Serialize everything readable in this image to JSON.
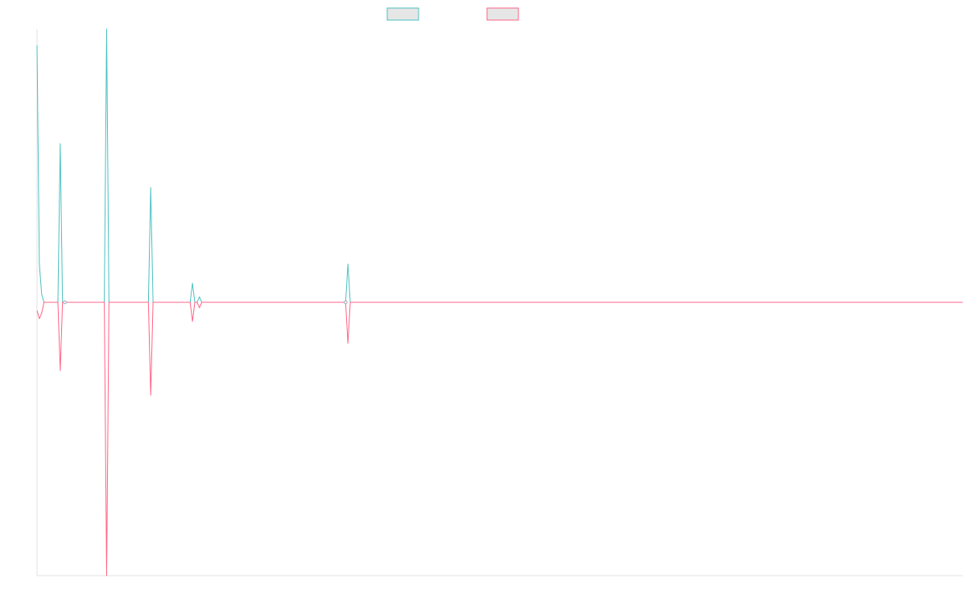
{
  "chart_data": {
    "type": "line",
    "title": "",
    "xlabel": "",
    "ylabel": "",
    "grid": false,
    "legend": "top-center",
    "x_count": 400,
    "ylim": [
      -1.0,
      1.0
    ],
    "series": [
      {
        "name": "",
        "color": "#4bc0c0",
        "fill": "#e6e6e6",
        "points": [
          [
            0,
            0.94
          ],
          [
            1,
            0.14
          ],
          [
            2,
            0.03
          ],
          [
            3,
            0.0
          ],
          [
            9,
            0.0
          ],
          [
            10,
            0.58
          ],
          [
            11,
            0.0
          ],
          [
            12,
            0.0
          ],
          [
            29,
            0.0
          ],
          [
            30,
            1.0
          ],
          [
            31,
            0.0
          ],
          [
            48,
            0.0
          ],
          [
            49,
            0.42
          ],
          [
            50,
            0.0
          ],
          [
            66,
            0.0
          ],
          [
            67,
            0.07
          ],
          [
            68,
            0.0
          ],
          [
            69,
            0.0
          ],
          [
            70,
            0.02
          ],
          [
            71,
            0.0
          ],
          [
            133,
            0.0
          ],
          [
            134,
            0.14
          ],
          [
            135,
            0.0
          ],
          [
            399,
            0.0
          ]
        ]
      },
      {
        "name": "",
        "color": "#ff6384",
        "fill": "#e6e6e6",
        "points": [
          [
            0,
            -0.03
          ],
          [
            1,
            -0.06
          ],
          [
            2,
            -0.04
          ],
          [
            3,
            0.0
          ],
          [
            9,
            0.0
          ],
          [
            10,
            -0.25
          ],
          [
            11,
            0.0
          ],
          [
            12,
            0.0
          ],
          [
            29,
            0.0
          ],
          [
            30,
            -1.0
          ],
          [
            31,
            0.0
          ],
          [
            48,
            0.0
          ],
          [
            49,
            -0.34
          ],
          [
            50,
            0.0
          ],
          [
            66,
            0.0
          ],
          [
            67,
            -0.07
          ],
          [
            68,
            0.0
          ],
          [
            69,
            0.0
          ],
          [
            70,
            -0.02
          ],
          [
            71,
            0.0
          ],
          [
            133,
            0.0
          ],
          [
            134,
            -0.15
          ],
          [
            135,
            0.0
          ],
          [
            399,
            0.0
          ]
        ]
      }
    ]
  }
}
